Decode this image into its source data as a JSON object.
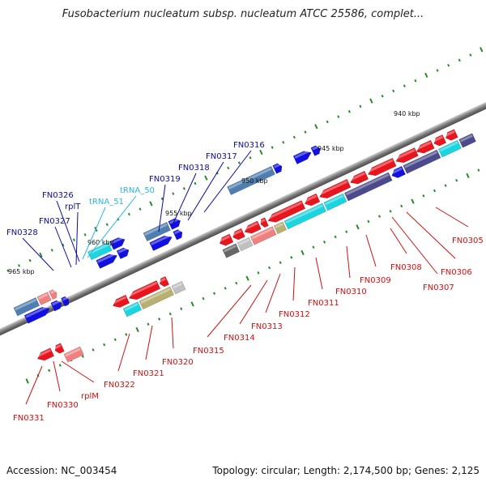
{
  "title": "Fusobacterium nucleatum subsp. nucleatum ATCC 25586, complet...",
  "footer": {
    "accession": "Accession: NC_003454",
    "topology": "Topology: circular; Length: 2,174,500 bp; Genes: 2,125"
  },
  "colors": {
    "backbone": "#8a8a8a",
    "cds": "#e8141e",
    "cds_light": "#f08080",
    "cds_blue": "#1010e0",
    "cds_navy": "#4a4a8c",
    "cds_cyan": "#1ad4e0",
    "cds_steel": "#4f7fb0",
    "cds_olive": "#b8b070",
    "cds_gray": "#666666",
    "cds_silver": "#c0c0c0",
    "tick": "#2a8a2a",
    "label_blue": "#0a0aa8",
    "label_cyan": "#2ab8e0",
    "label_red": "#d01010"
  },
  "kbp_markers": [
    "940 kbp",
    "945 kbp",
    "950 kbp",
    "955 kbp",
    "960 kbp",
    "965 kbp"
  ],
  "genes_top": [
    {
      "name": "FN0316",
      "color": "label_blue"
    },
    {
      "name": "FN0317",
      "color": "label_blue"
    },
    {
      "name": "FN0318",
      "color": "label_blue"
    },
    {
      "name": "FN0319",
      "color": "label_blue"
    },
    {
      "name": "tRNA_50",
      "color": "label_cyan"
    },
    {
      "name": "tRNA_51",
      "color": "label_cyan"
    },
    {
      "name": "FN0326",
      "color": "label_blue"
    },
    {
      "name": "rplT",
      "color": "label_blue"
    },
    {
      "name": "FN0327",
      "color": "label_blue"
    },
    {
      "name": "FN0328",
      "color": "label_blue"
    }
  ],
  "genes_bottom": [
    {
      "name": "FN0305"
    },
    {
      "name": "FN0306"
    },
    {
      "name": "FN0307"
    },
    {
      "name": "FN0308"
    },
    {
      "name": "FN0309"
    },
    {
      "name": "FN0310"
    },
    {
      "name": "FN0311"
    },
    {
      "name": "FN0312"
    },
    {
      "name": "FN0313"
    },
    {
      "name": "FN0314"
    },
    {
      "name": "FN0315"
    },
    {
      "name": "FN0320"
    },
    {
      "name": "FN0321"
    },
    {
      "name": "FN0322"
    },
    {
      "name": "rplM"
    },
    {
      "name": "FN0330"
    },
    {
      "name": "FN0331"
    }
  ]
}
